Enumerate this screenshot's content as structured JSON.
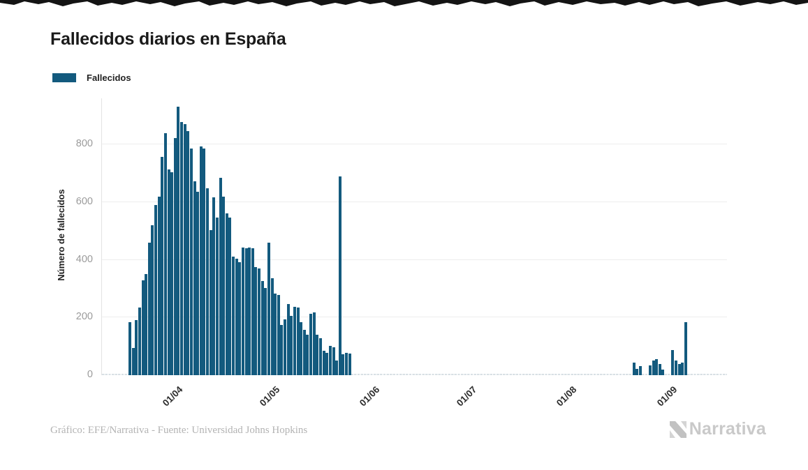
{
  "header": {
    "title": "Fallecidos diarios en España"
  },
  "legend": {
    "label": "Fallecidos",
    "swatch_color": "#135a7e"
  },
  "footer": {
    "credit": "Gráfico: EFE/Narrativa - Fuente: Universidad Johns Hopkins",
    "brand": "Narrativa"
  },
  "colors": {
    "bar": "#135a7e",
    "grid": "#ededed",
    "ytick_text": "#9b9b9b",
    "xtick_text": "#2e2e2e"
  },
  "chart_data": {
    "type": "bar",
    "title": "Fallecidos diarios en España",
    "xlabel": "",
    "ylabel": "Número de fallecidos",
    "ylim": [
      0,
      960
    ],
    "yticks": [
      0,
      200,
      400,
      600,
      800
    ],
    "xticks": [
      "01/04",
      "01/05",
      "01/06",
      "01/07",
      "01/08",
      "01/09"
    ],
    "grid": "horizontal",
    "legend_position": "top-left",
    "dates": [
      "18/03",
      "19/03",
      "20/03",
      "21/03",
      "22/03",
      "23/03",
      "24/03",
      "25/03",
      "26/03",
      "27/03",
      "28/03",
      "29/03",
      "30/03",
      "31/03",
      "01/04",
      "02/04",
      "03/04",
      "04/04",
      "05/04",
      "06/04",
      "07/04",
      "08/04",
      "09/04",
      "10/04",
      "11/04",
      "12/04",
      "13/04",
      "14/04",
      "15/04",
      "16/04",
      "17/04",
      "18/04",
      "19/04",
      "20/04",
      "21/04",
      "22/04",
      "23/04",
      "24/04",
      "25/04",
      "26/04",
      "27/04",
      "28/04",
      "29/04",
      "30/04",
      "01/05",
      "02/05",
      "03/05",
      "04/05",
      "05/05",
      "06/05",
      "07/05",
      "08/05",
      "09/05",
      "10/05",
      "11/05",
      "12/05",
      "13/05",
      "14/05",
      "15/05",
      "16/05",
      "17/05",
      "18/05",
      "19/05",
      "20/05",
      "21/05",
      "22/05",
      "23/05",
      "24/05",
      "25/05",
      "26/05",
      "27/05",
      "28/05",
      "29/05",
      "30/05",
      "31/05",
      "01/06",
      "02/06",
      "03/06",
      "04/06",
      "05/06",
      "06/06",
      "07/06",
      "08/06",
      "09/06",
      "10/06",
      "11/06",
      "12/06",
      "13/06",
      "14/06",
      "15/06",
      "16/06",
      "17/06",
      "18/06",
      "19/06",
      "20/06",
      "21/06",
      "22/06",
      "23/06",
      "24/06",
      "25/06",
      "26/06",
      "27/06",
      "28/06",
      "29/06",
      "30/06",
      "01/07",
      "02/07",
      "03/07",
      "04/07",
      "05/07",
      "06/07",
      "07/07",
      "08/07",
      "09/07",
      "10/07",
      "11/07",
      "12/07",
      "13/07",
      "14/07",
      "15/07",
      "16/07",
      "17/07",
      "18/07",
      "19/07",
      "20/07",
      "21/07",
      "22/07",
      "23/07",
      "24/07",
      "25/07",
      "26/07",
      "27/07",
      "28/07",
      "29/07",
      "30/07",
      "31/07",
      "01/08",
      "02/08",
      "03/08",
      "04/08",
      "05/08",
      "06/08",
      "07/08",
      "08/08",
      "09/08",
      "10/08",
      "11/08",
      "12/08",
      "13/08",
      "14/08",
      "15/08",
      "16/08",
      "17/08",
      "18/08",
      "19/08",
      "20/08",
      "21/08",
      "22/08",
      "23/08",
      "24/08",
      "25/08",
      "26/08",
      "27/08",
      "28/08",
      "29/08",
      "30/08",
      "31/08",
      "01/09",
      "02/09",
      "03/09",
      "04/09",
      "05/09",
      "06/09"
    ],
    "series": [
      {
        "name": "Fallecidos",
        "color": "#135a7e",
        "values": [
          185,
          95,
          190,
          235,
          330,
          350,
          460,
          520,
          590,
          619,
          757,
          840,
          713,
          703,
          822,
          930,
          877,
          870,
          846,
          786,
          672,
          636,
          793,
          786,
          648,
          504,
          617,
          546,
          685,
          620,
          560,
          546,
          411,
          403,
          391,
          443,
          439,
          443,
          439,
          375,
          371,
          326,
          302,
          459,
          335,
          282,
          278,
          173,
          193,
          246,
          206,
          238,
          234,
          185,
          157,
          141,
          213,
          218,
          141,
          129,
          85,
          77,
          101,
          97,
          52,
          689,
          73,
          77,
          74,
          0,
          0,
          0,
          0,
          0,
          0,
          0,
          0,
          0,
          0,
          0,
          0,
          0,
          0,
          0,
          0,
          0,
          0,
          0,
          0,
          0,
          0,
          0,
          0,
          0,
          0,
          0,
          0,
          0,
          0,
          0,
          0,
          0,
          0,
          0,
          0,
          0,
          0,
          0,
          0,
          0,
          0,
          0,
          0,
          0,
          0,
          0,
          0,
          0,
          0,
          0,
          0,
          0,
          0,
          0,
          0,
          0,
          0,
          0,
          0,
          0,
          0,
          0,
          0,
          0,
          0,
          0,
          0,
          0,
          0,
          0,
          0,
          0,
          0,
          0,
          0,
          0,
          0,
          0,
          0,
          0,
          0,
          0,
          0,
          0,
          0,
          0,
          43,
          22,
          31,
          0,
          0,
          35,
          50,
          56,
          38,
          20,
          0,
          0,
          87,
          51,
          39,
          43,
          184
        ]
      }
    ]
  }
}
